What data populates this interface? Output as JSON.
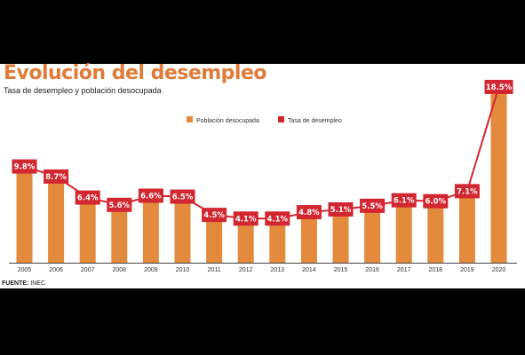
{
  "title": "Evolución del desempleo",
  "subtitle": "Tasa de desempleo y población desocupada",
  "source_label": "FUENTE:",
  "source_value": " INEC",
  "colors": {
    "bar": "#e38a3d",
    "line": "#d22630",
    "title": "#e07b39"
  },
  "chart_data": {
    "type": "bar+line",
    "categories": [
      "2005",
      "2006",
      "2007",
      "2008",
      "2009",
      "2010",
      "2011",
      "2012",
      "2013",
      "2014",
      "2015",
      "2016",
      "2017",
      "2018",
      "2019",
      "2020"
    ],
    "series": [
      {
        "name": "Población desocupada",
        "type": "bar",
        "values": [
          9.8,
          8.7,
          6.4,
          5.6,
          6.6,
          6.5,
          4.5,
          4.1,
          4.1,
          4.8,
          5.1,
          5.5,
          6.1,
          6.0,
          7.1,
          18.5
        ]
      },
      {
        "name": "Tasa de desempleo",
        "type": "line",
        "values": [
          9.8,
          8.7,
          6.4,
          5.6,
          6.6,
          6.5,
          4.5,
          4.1,
          4.1,
          4.8,
          5.1,
          5.5,
          6.1,
          6.0,
          7.1,
          18.5
        ],
        "labels": [
          "9.8%",
          "8.7%",
          "6.4%",
          "5.6%",
          "6.6%",
          "6.5%",
          "4.5%",
          "4.1%",
          "4.1%",
          "4.8%",
          "5.1%",
          "5.5%",
          "6.1%",
          "6.0%",
          "7.1%",
          "18.5%"
        ]
      }
    ],
    "legend_position": "top-right",
    "grid": false
  }
}
